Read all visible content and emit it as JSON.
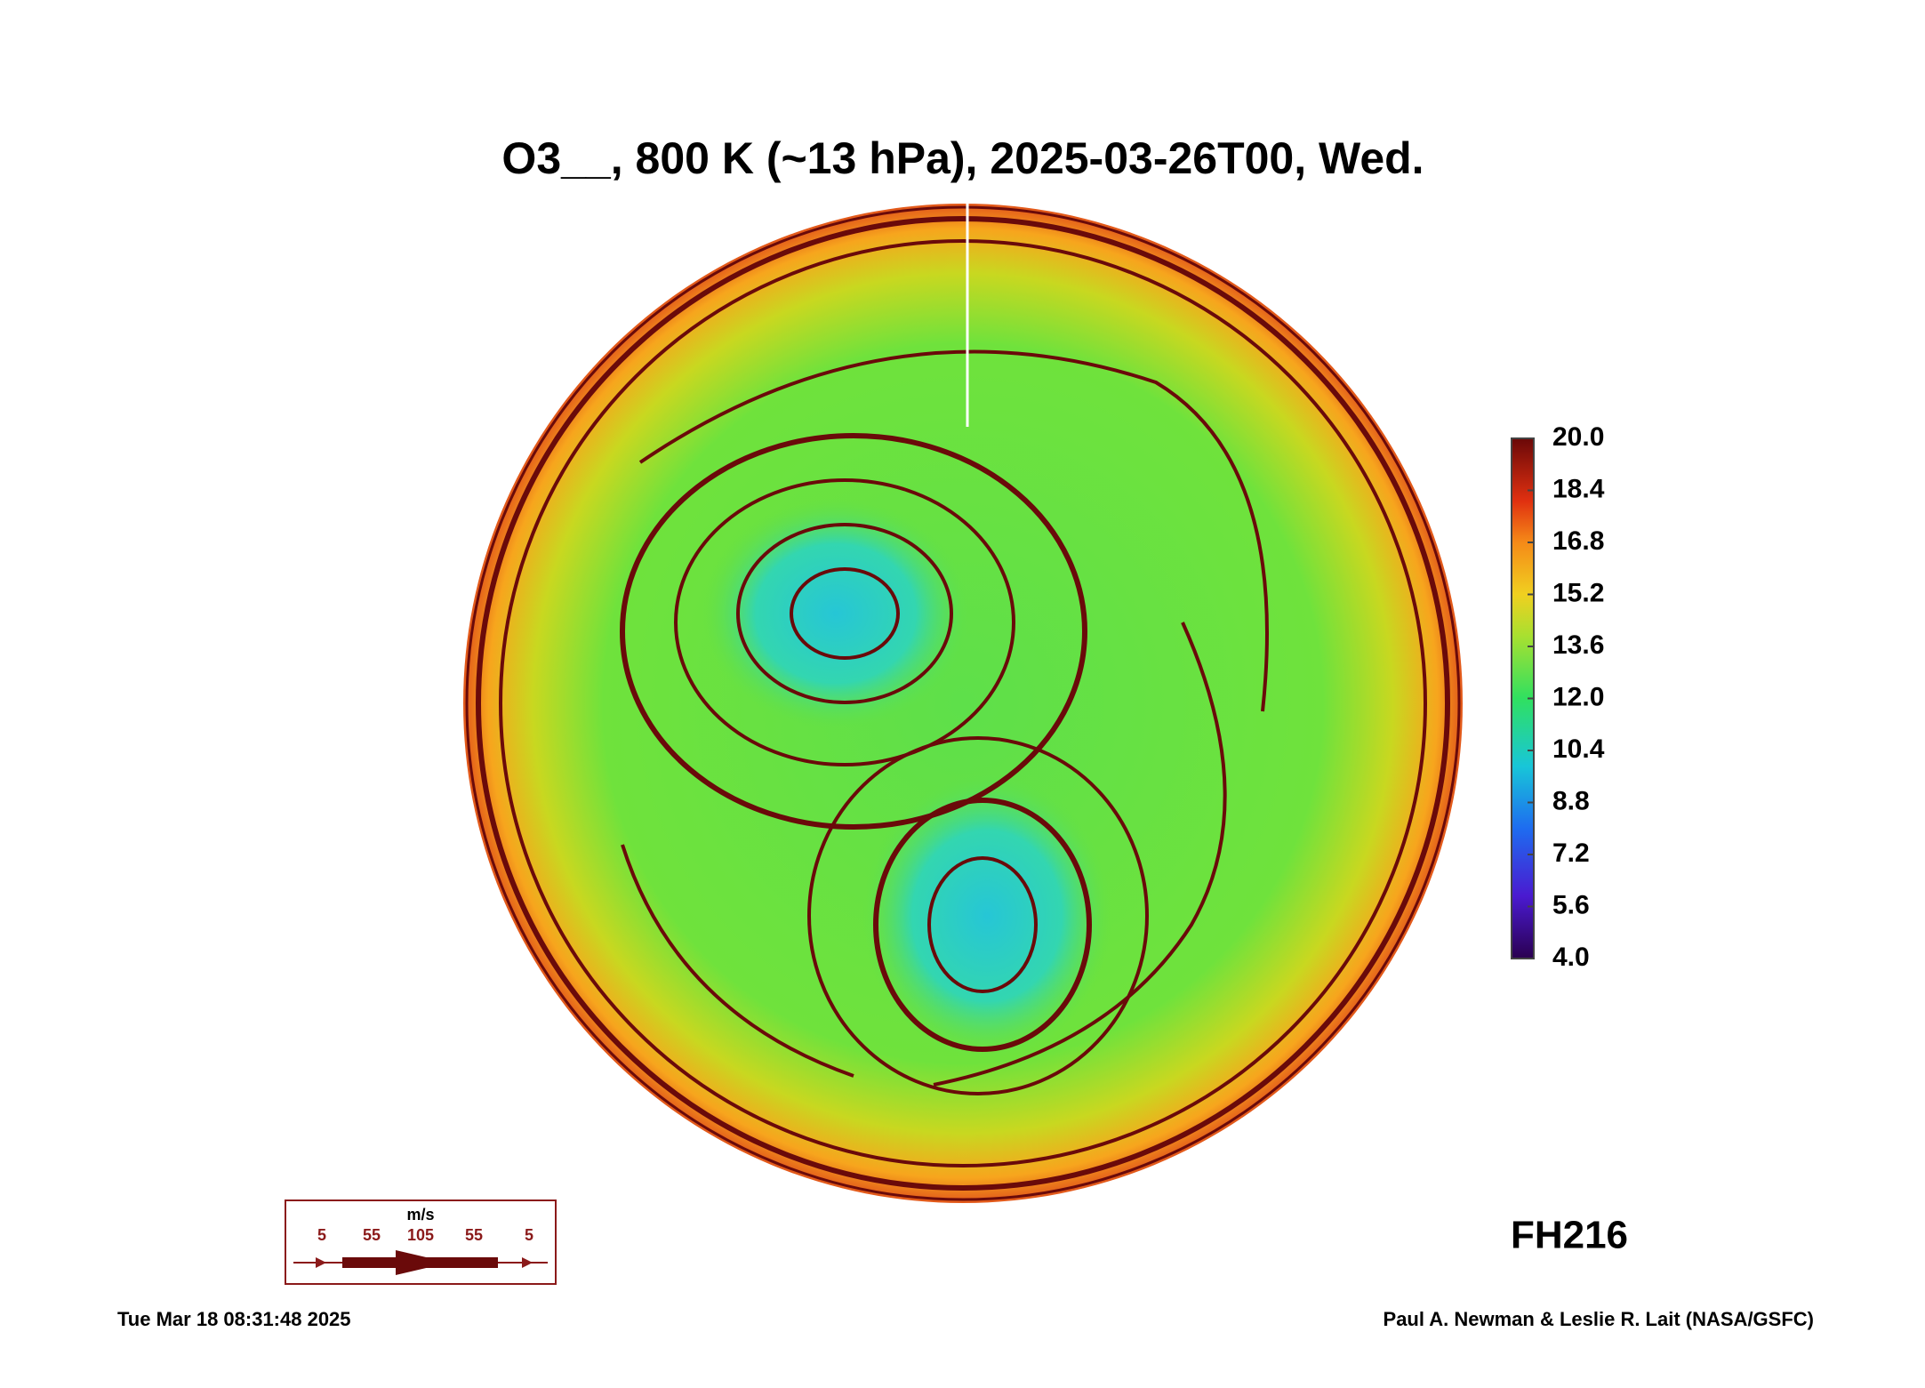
{
  "title": "O3__, 800 K (~13 hPa), 2025-03-26T00, Wed.",
  "colorbar": {
    "range": [
      4,
      20
    ],
    "ticks": [
      {
        "value": 20,
        "label": "20.0"
      },
      18.4,
      16.8,
      15.2,
      13.6,
      {
        "value": 12,
        "label": "12.0"
      },
      10.4,
      8.8,
      7.2,
      5.6,
      {
        "value": 4,
        "label": "4.0"
      }
    ]
  },
  "wind_legend": {
    "unit": "m/s",
    "speeds": [
      5,
      55,
      105,
      55,
      5
    ]
  },
  "forecast_hour": "FH216",
  "timestamp": "Tue Mar 18 08:31:48 2025",
  "credit": "Paul A. Newman & Leslie R. Lait (NASA/GSFC)"
}
